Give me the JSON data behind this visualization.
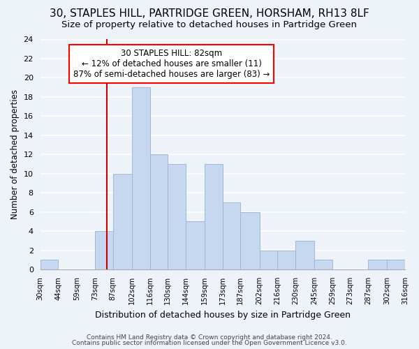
{
  "title": "30, STAPLES HILL, PARTRIDGE GREEN, HORSHAM, RH13 8LF",
  "subtitle": "Size of property relative to detached houses in Partridge Green",
  "xlabel": "Distribution of detached houses by size in Partridge Green",
  "ylabel": "Number of detached properties",
  "bar_edges": [
    30,
    44,
    59,
    73,
    87,
    102,
    116,
    130,
    144,
    159,
    173,
    187,
    202,
    216,
    230,
    245,
    259,
    273,
    287,
    302,
    316
  ],
  "bar_heights": [
    1,
    0,
    0,
    4,
    10,
    19,
    12,
    11,
    5,
    11,
    7,
    6,
    2,
    2,
    3,
    1,
    0,
    0,
    1,
    1
  ],
  "bar_color": "#c5d8f0",
  "bar_edgecolor": "#a0b8d8",
  "property_line_x": 82,
  "annotation_box_text": "30 STAPLES HILL: 82sqm\n← 12% of detached houses are smaller (11)\n87% of semi-detached houses are larger (83) →",
  "red_line_color": "#cc0000",
  "ylim": [
    0,
    24
  ],
  "yticks": [
    0,
    2,
    4,
    6,
    8,
    10,
    12,
    14,
    16,
    18,
    20,
    22,
    24
  ],
  "tick_labels": [
    "30sqm",
    "44sqm",
    "59sqm",
    "73sqm",
    "87sqm",
    "102sqm",
    "116sqm",
    "130sqm",
    "144sqm",
    "159sqm",
    "173sqm",
    "187sqm",
    "202sqm",
    "216sqm",
    "230sqm",
    "245sqm",
    "259sqm",
    "273sqm",
    "287sqm",
    "302sqm",
    "316sqm"
  ],
  "footer_line1": "Contains HM Land Registry data © Crown copyright and database right 2024.",
  "footer_line2": "Contains public sector information licensed under the Open Government Licence v3.0.",
  "bg_color": "#eef2f9",
  "grid_color": "#ffffff",
  "title_fontsize": 11,
  "subtitle_fontsize": 9.5
}
